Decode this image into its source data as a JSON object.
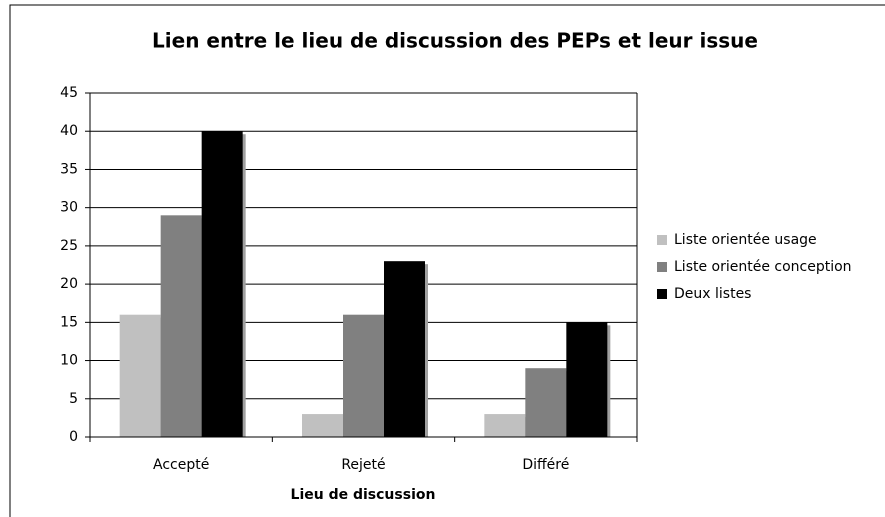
{
  "chart_data": {
    "type": "bar",
    "title": "Lien entre le lieu de discussion des PEPs et leur issue",
    "x_label": "Lieu de discussion",
    "categories": [
      "Accepté",
      "Rejeté",
      "Différé"
    ],
    "series": [
      {
        "name": "Liste orientée usage",
        "color": "#c0c0c0",
        "values": [
          16,
          3,
          3
        ]
      },
      {
        "name": "Liste orientée conception",
        "color": "#808080",
        "values": [
          29,
          16,
          9
        ]
      },
      {
        "name": "Deux listes",
        "color": "#000000",
        "values": [
          40,
          23,
          15
        ]
      }
    ],
    "ylim": [
      0,
      45
    ],
    "yticks": [
      0,
      5,
      10,
      15,
      20,
      25,
      30,
      35,
      40,
      45
    ],
    "grid": true,
    "legend": "right"
  }
}
